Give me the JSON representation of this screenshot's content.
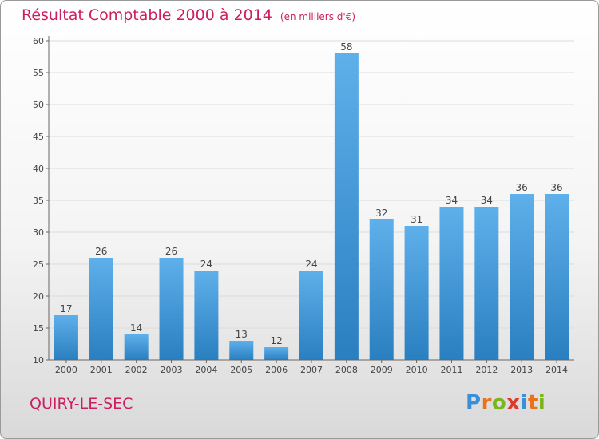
{
  "header": {
    "title": "Résultat Comptable 2000 à 2014",
    "subtitle": "(en milliers d'€)"
  },
  "footer": {
    "commune": "QUIRY-LE-SEC",
    "logo": "Proxiti"
  },
  "colors": {
    "title": "#cc1f61",
    "bar_light": "#5eb0ea",
    "bar_dark": "#2a7fc0",
    "grid": "#dcdcdc"
  },
  "chart_data": {
    "type": "bar",
    "categories": [
      "2000",
      "2001",
      "2002",
      "2003",
      "2004",
      "2005",
      "2006",
      "2007",
      "2008",
      "2009",
      "2010",
      "2011",
      "2012",
      "2013",
      "2014"
    ],
    "values": [
      17,
      26,
      14,
      26,
      24,
      13,
      12,
      24,
      58,
      32,
      31,
      34,
      34,
      36,
      36
    ],
    "ylim": [
      10,
      60
    ],
    "yticks": [
      10,
      15,
      20,
      25,
      30,
      35,
      40,
      45,
      50,
      55,
      60
    ],
    "xlabel": "",
    "ylabel": "",
    "grid": true,
    "data_labels": true
  }
}
